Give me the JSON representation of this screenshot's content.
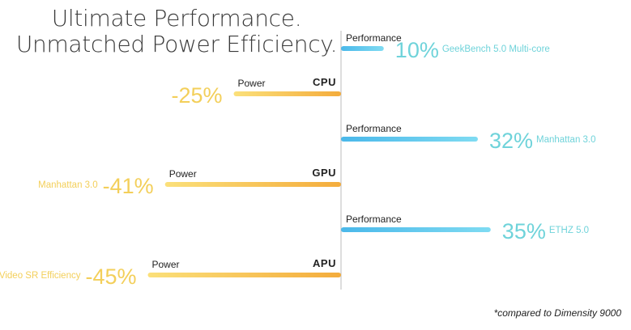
{
  "title_line1": "Ultimate Performance.",
  "title_line2": "Unmatched Power Efficiency.",
  "footnote": "*compared to Dimensity 9000",
  "colors": {
    "performance": "#5cc5ec",
    "performance_text": "#6fd3da",
    "power": "#f5c04a",
    "power_text": "#f3cf5a",
    "axis": "#bbbbbb",
    "label": "#222222"
  },
  "chart_data": {
    "type": "bar",
    "orientation": "horizontal-diverging",
    "groups": [
      {
        "name": "CPU",
        "performance": {
          "label": "Performance",
          "value": 10,
          "display": "10%",
          "benchmark": "GeekBench 5.0 Multi-core"
        },
        "power": {
          "label": "Power",
          "value": -25,
          "display": "-25%",
          "benchmark": ""
        }
      },
      {
        "name": "GPU",
        "performance": {
          "label": "Performance",
          "value": 32,
          "display": "32%",
          "benchmark": "Manhattan 3.0"
        },
        "power": {
          "label": "Power",
          "value": -41,
          "display": "-41%",
          "benchmark": "Manhattan 3.0"
        }
      },
      {
        "name": "APU",
        "performance": {
          "label": "Performance",
          "value": 35,
          "display": "35%",
          "benchmark": "ETHZ 5.0"
        },
        "power": {
          "label": "Power",
          "value": -45,
          "display": "-45%",
          "benchmark": "Video SR Efficiency"
        }
      }
    ],
    "grid": false,
    "legend": "none"
  }
}
